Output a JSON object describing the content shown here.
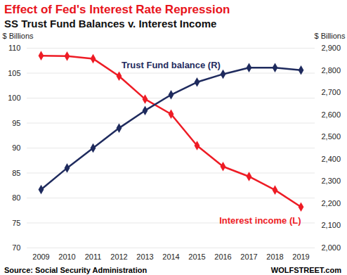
{
  "chart_data": {
    "type": "line",
    "title": "Effect of Fed's Interest Rate Repression",
    "subtitle": "SS Trust Fund Balances v. Interest Income",
    "ylabel": "$ Billions",
    "y2label": "$ Billions",
    "source": "Source: Social Security Administration",
    "credit": "WOLFSTREET.com",
    "categories": [
      "2009",
      "2010",
      "2011",
      "2012",
      "2013",
      "2014",
      "2015",
      "2016",
      "2017",
      "2018",
      "2019"
    ],
    "series": [
      {
        "name": "Interest income (L)",
        "color": "#ee1c25",
        "marker": "diamond",
        "axis": "y",
        "values": [
          108.5,
          108.4,
          107.9,
          104.4,
          99.8,
          96.8,
          90.5,
          86.3,
          84.3,
          81.6,
          78.2
        ]
      },
      {
        "name": "Trust Fund balance (R)",
        "color": "#1f2b5e",
        "marker": "diamond",
        "axis": "y2",
        "values": [
          2263,
          2360,
          2450,
          2540,
          2619,
          2690,
          2747,
          2783,
          2812,
          2812,
          2801
        ]
      }
    ],
    "ylim": [
      70,
      110
    ],
    "yticks": [
      70,
      75,
      80,
      85,
      90,
      95,
      100,
      105,
      110
    ],
    "y2lim": [
      2000,
      2900
    ],
    "y2ticks": [
      {
        "value": 2000,
        "label": "2,000"
      },
      {
        "value": 2100,
        "label": "2,100"
      },
      {
        "value": 2200,
        "label": "2,200"
      },
      {
        "value": 2300,
        "label": "2,300"
      },
      {
        "value": 2400,
        "label": "2,400"
      },
      {
        "value": 2500,
        "label": "2,500"
      },
      {
        "value": 2600,
        "label": "2,600"
      },
      {
        "value": 2700,
        "label": "2,700"
      },
      {
        "value": 2800,
        "label": "2,800"
      },
      {
        "value": 2900,
        "label": "2,900"
      }
    ],
    "grid": true
  }
}
